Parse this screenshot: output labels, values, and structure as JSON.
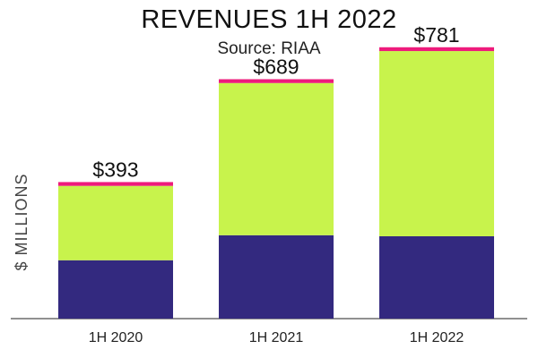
{
  "chart_data": {
    "type": "bar",
    "stacked": true,
    "title": "REVENUES 1H 2022",
    "subtitle": "Source: RIAA",
    "xlabel": "",
    "ylabel": "$ MILLIONS",
    "ylim": [
      0,
      850
    ],
    "grid": false,
    "categories": [
      "1H 2020",
      "1H 2021",
      "1H 2022"
    ],
    "series": [
      {
        "values": [
          168,
          240,
          237
        ],
        "color": "#33297f"
      },
      {
        "values": [
          214,
          438,
          533
        ],
        "color": "#c8f34c"
      },
      {
        "values": [
          11,
          11,
          11
        ],
        "color": "#ee1b7c"
      }
    ],
    "totals": [
      393,
      689,
      781
    ],
    "data_labels": [
      "$393",
      "$689",
      "$781"
    ]
  }
}
